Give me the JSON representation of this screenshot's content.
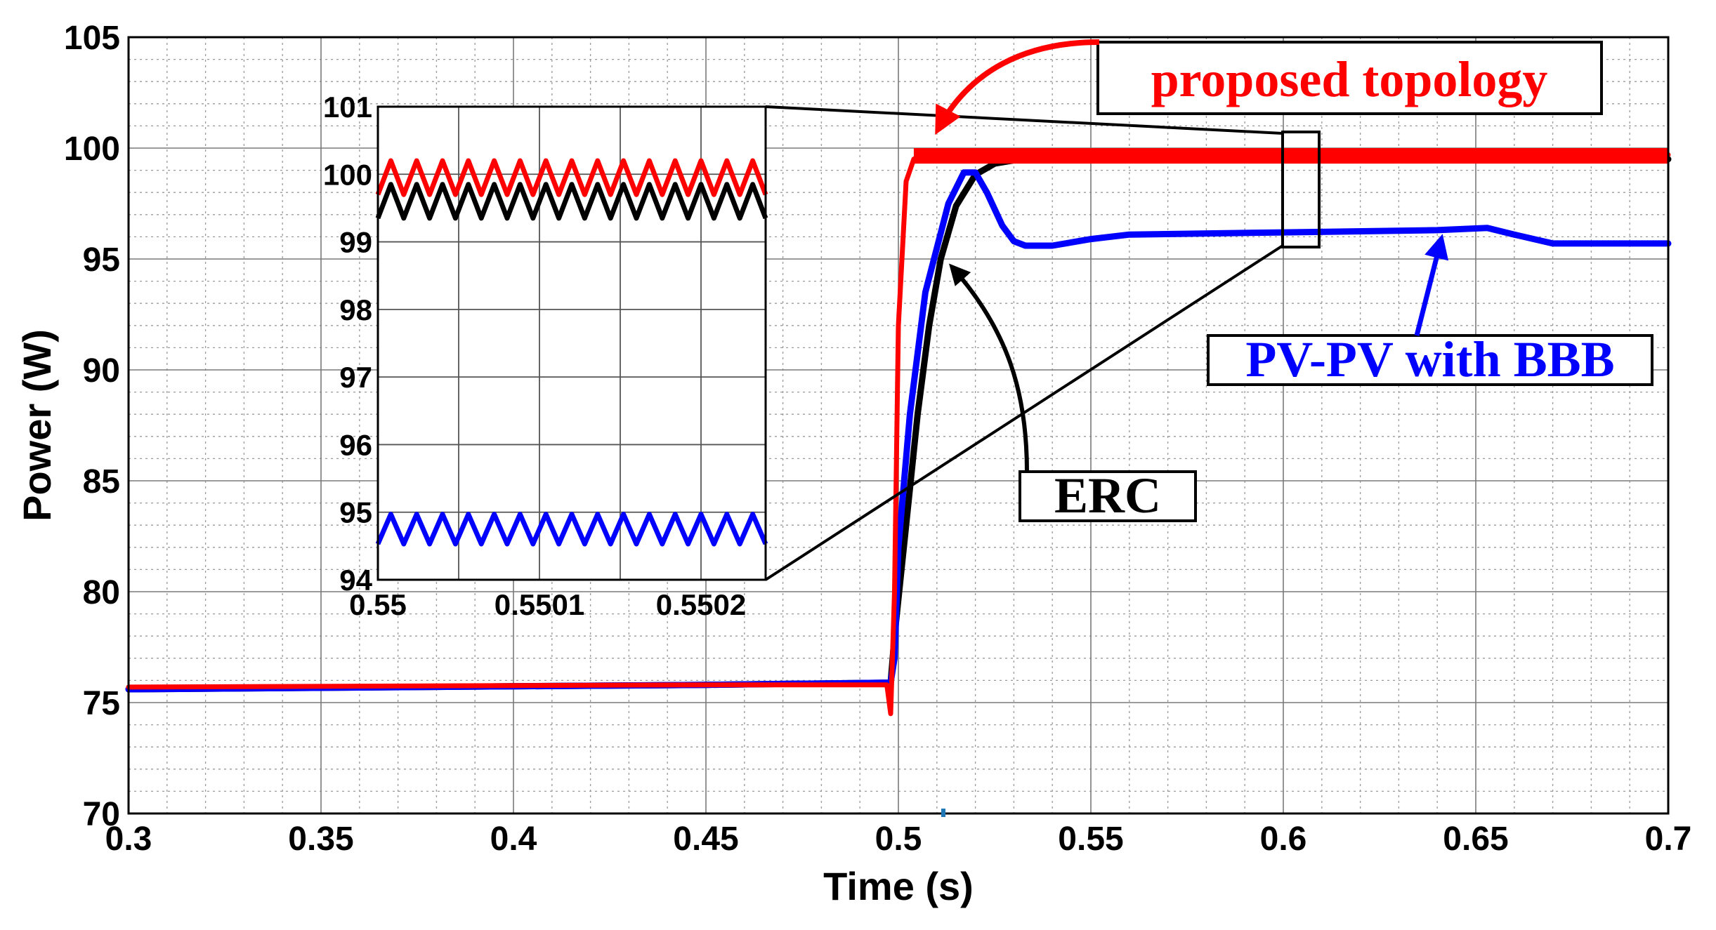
{
  "chart_data": {
    "type": "line",
    "title": "",
    "xlabel": "Time (s)",
    "ylabel": "Power (W)",
    "xlim": [
      0.3,
      0.7
    ],
    "ylim": [
      70,
      105
    ],
    "xticks": [
      "0.3",
      "0.35",
      "0.4",
      "0.45",
      "0.5",
      "0.55",
      "0.6",
      "0.65",
      "0.7"
    ],
    "yticks": [
      "70",
      "75",
      "80",
      "85",
      "90",
      "95",
      "100",
      "105"
    ],
    "grid": true,
    "series": [
      {
        "name": "ERC",
        "color": "#000000",
        "x": [
          0.3,
          0.45,
          0.498,
          0.499,
          0.502,
          0.505,
          0.508,
          0.511,
          0.515,
          0.52,
          0.525,
          0.53,
          0.54,
          0.55,
          0.6,
          0.7
        ],
        "y": [
          75.6,
          75.8,
          75.9,
          78.0,
          83.0,
          88.0,
          92.0,
          95.0,
          97.4,
          98.8,
          99.3,
          99.45,
          99.5,
          99.5,
          99.5,
          99.5
        ]
      },
      {
        "name": "PV-PV with BBB",
        "color": "#0000ff",
        "x": [
          0.3,
          0.45,
          0.498,
          0.499,
          0.5,
          0.503,
          0.507,
          0.51,
          0.513,
          0.517,
          0.52,
          0.523,
          0.527,
          0.53,
          0.533,
          0.54,
          0.55,
          0.56,
          0.6,
          0.64,
          0.653,
          0.66,
          0.67,
          0.7
        ],
        "y": [
          75.6,
          75.8,
          75.9,
          77.0,
          82.0,
          88.0,
          93.5,
          95.5,
          97.5,
          98.9,
          98.9,
          98.0,
          96.5,
          95.8,
          95.6,
          95.6,
          95.9,
          96.1,
          96.2,
          96.3,
          96.4,
          96.1,
          95.7,
          95.7
        ]
      },
      {
        "name": "proposed topology",
        "color": "#ff0000",
        "x": [
          0.3,
          0.45,
          0.497,
          0.498,
          0.499,
          0.5,
          0.502,
          0.504,
          0.506,
          0.51,
          0.52,
          0.7
        ],
        "y": [
          75.7,
          75.8,
          75.8,
          74.5,
          80.0,
          92.0,
          98.5,
          99.5,
          99.7,
          99.7,
          99.7,
          99.7
        ]
      }
    ],
    "annotations": [
      "proposed topology",
      "PV-PV with BBB",
      "ERC"
    ],
    "inset": {
      "xlim": [
        0.55,
        0.55024
      ],
      "ylim": [
        94,
        101
      ],
      "xticks": [
        "0.55",
        "0.5501",
        "0.5502"
      ],
      "yticks": [
        "94",
        "95",
        "96",
        "97",
        "98",
        "99",
        "100",
        "101"
      ],
      "series": [
        {
          "name": "proposed topology",
          "color": "#ff0000",
          "center": 99.95,
          "ripple": 0.25,
          "cycles": 15
        },
        {
          "name": "ERC",
          "color": "#000000",
          "center": 99.6,
          "ripple": 0.25,
          "cycles": 15
        },
        {
          "name": "PV-PV with BBB",
          "color": "#0000ff",
          "center": 94.75,
          "ripple": 0.22,
          "cycles": 15
        }
      ]
    }
  }
}
